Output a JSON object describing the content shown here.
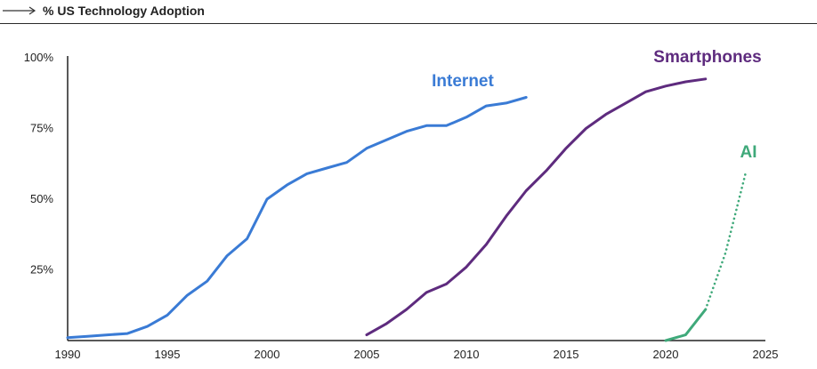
{
  "header": {
    "title": "% US Technology Adoption",
    "arrow_icon": "arrow-right-icon"
  },
  "chart_data": {
    "type": "line",
    "title": "% US Technology Adoption",
    "xlabel": "",
    "ylabel": "",
    "xlim": [
      1990,
      2025
    ],
    "ylim": [
      0,
      100
    ],
    "x_ticks": [
      1990,
      1995,
      2000,
      2005,
      2010,
      2015,
      2020,
      2025
    ],
    "y_ticks": [
      25,
      50,
      75,
      100
    ],
    "y_tick_labels": [
      "25%",
      "50%",
      "75%",
      "100%"
    ],
    "grid": false,
    "legend": "inline labels",
    "series": [
      {
        "name": "Internet",
        "color": "#3a7bd5",
        "style": "solid",
        "points": [
          [
            1990,
            1
          ],
          [
            1991,
            1.5
          ],
          [
            1992,
            2
          ],
          [
            1993,
            2.5
          ],
          [
            1994,
            5
          ],
          [
            1995,
            9
          ],
          [
            1996,
            16
          ],
          [
            1997,
            21
          ],
          [
            1998,
            30
          ],
          [
            1999,
            36
          ],
          [
            2000,
            50
          ],
          [
            2001,
            55
          ],
          [
            2002,
            59
          ],
          [
            2003,
            61
          ],
          [
            2004,
            63
          ],
          [
            2005,
            68
          ],
          [
            2006,
            71
          ],
          [
            2007,
            74
          ],
          [
            2008,
            76
          ],
          [
            2009,
            76
          ],
          [
            2010,
            79
          ],
          [
            2011,
            83
          ],
          [
            2012,
            84
          ],
          [
            2013,
            86
          ]
        ]
      },
      {
        "name": "Smartphones",
        "color": "#5e2b7e",
        "style": "solid",
        "points": [
          [
            2005,
            2
          ],
          [
            2006,
            6
          ],
          [
            2007,
            11
          ],
          [
            2008,
            17
          ],
          [
            2009,
            20
          ],
          [
            2010,
            26
          ],
          [
            2011,
            34
          ],
          [
            2012,
            44
          ],
          [
            2013,
            53
          ],
          [
            2014,
            60
          ],
          [
            2015,
            68
          ],
          [
            2016,
            75
          ],
          [
            2017,
            80
          ],
          [
            2018,
            84
          ],
          [
            2019,
            88
          ],
          [
            2020,
            90
          ],
          [
            2021,
            91.5
          ],
          [
            2022,
            92.5
          ]
        ]
      },
      {
        "name": "AI",
        "color": "#3fa97a",
        "segments": [
          {
            "style": "solid",
            "points": [
              [
                2020,
                0
              ],
              [
                2021,
                2
              ],
              [
                2022,
                11
              ]
            ]
          },
          {
            "style": "dotted",
            "points": [
              [
                2022,
                11
              ],
              [
                2023,
                31
              ],
              [
                2024,
                59
              ]
            ]
          }
        ]
      }
    ]
  }
}
